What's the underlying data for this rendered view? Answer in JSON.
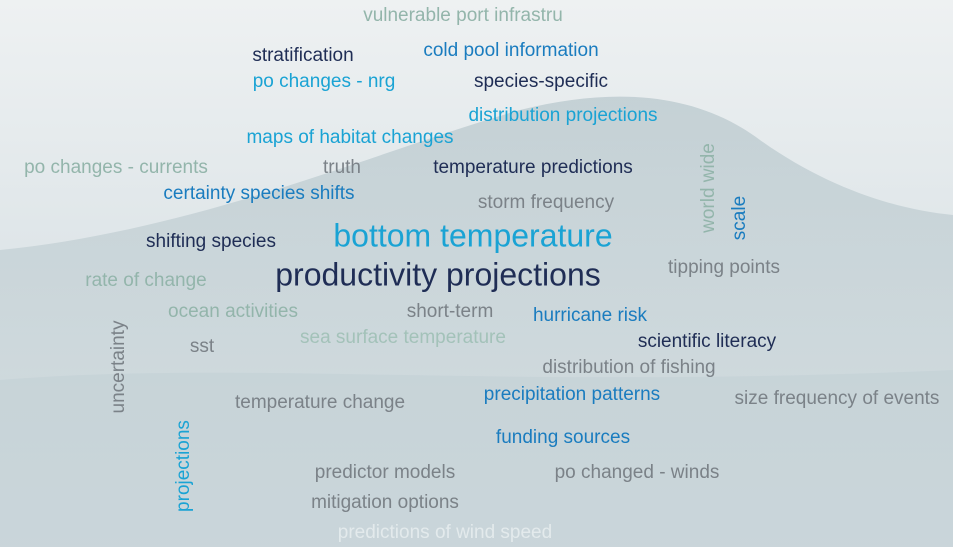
{
  "words": [
    "vulnerable port infrastru",
    "stratification",
    "cold pool information",
    "po changes - nrg",
    "species-specific",
    "distribution projections",
    "maps of habitat changes",
    "po changes - currents",
    "truth",
    "temperature predictions",
    "world wide",
    "scale",
    "certainty species shifts",
    "storm frequency",
    "shifting species",
    "bottom temperature",
    "productivity projections",
    "tipping points",
    "rate of change",
    "ocean activities",
    "short-term",
    "uncertainty",
    "hurricane risk",
    "sst",
    "sea surface temperature",
    "scientific literacy",
    "distribution of fishing",
    "precipitation patterns",
    "size frequency of events",
    "temperature change",
    "projections",
    "funding sources",
    "predictor models",
    "po changed - winds",
    "mitigation options",
    "predictions of wind speed"
  ]
}
